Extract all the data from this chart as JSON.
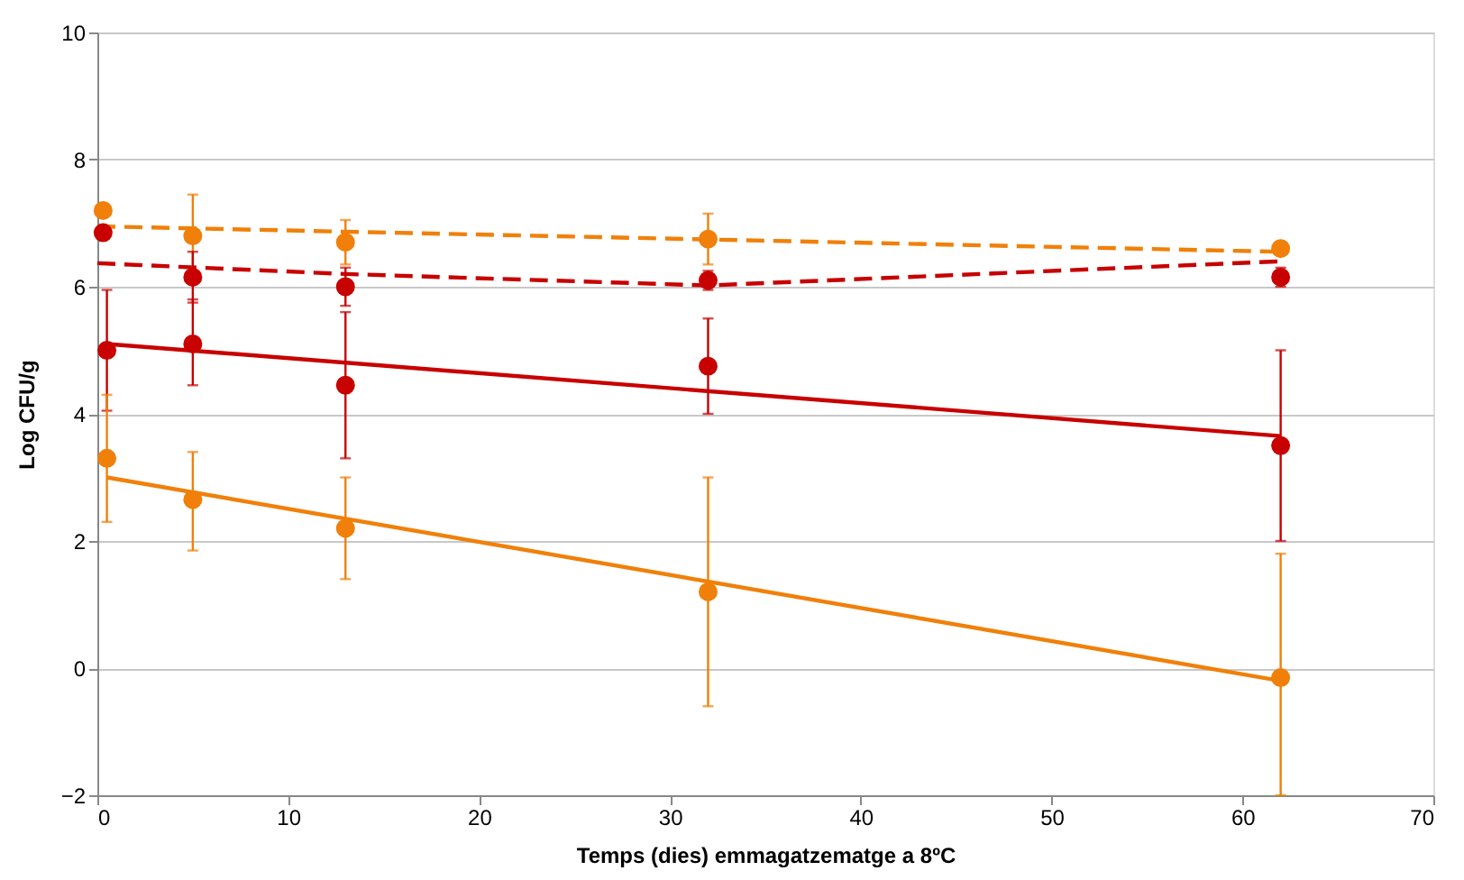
{
  "chart_data": {
    "type": "scatter",
    "xlabel": "Temps (dies) emmagatzematge a 8ºC",
    "ylabel": "Log CFU/g",
    "xlim": [
      0,
      70
    ],
    "xticks": [
      0,
      10,
      20,
      30,
      40,
      50,
      60,
      70
    ],
    "ylim": [
      -2,
      10
    ],
    "yticks": [
      -2,
      0,
      2,
      4,
      6,
      8,
      10
    ],
    "grid": "y",
    "marker": "circle",
    "series": [
      {
        "color": "#f0800a",
        "x": [
          0.3,
          5,
          13,
          32,
          62
        ],
        "values": [
          7.2,
          6.8,
          6.7,
          6.75,
          6.6
        ],
        "errors": [
          null,
          [
            6.2,
            7.45
          ],
          [
            6.35,
            7.05
          ],
          [
            6.35,
            7.15
          ],
          [
            6.5,
            6.7
          ]
        ]
      },
      {
        "color": "#c80000",
        "x": [
          0.3,
          5,
          13,
          32,
          62
        ],
        "values": [
          6.85,
          6.15,
          6.0,
          6.1,
          6.15
        ],
        "errors": [
          null,
          [
            5.75,
            6.55
          ],
          [
            5.7,
            6.3
          ],
          [
            5.95,
            6.25
          ],
          [
            6.0,
            6.3
          ]
        ]
      },
      {
        "color": "#c80000",
        "x": [
          0.5,
          5,
          13,
          32,
          62
        ],
        "values": [
          5.0,
          5.1,
          4.45,
          4.75,
          3.5
        ],
        "errors": [
          [
            4.05,
            5.95
          ],
          [
            4.45,
            5.8
          ],
          [
            3.3,
            5.6
          ],
          [
            4.0,
            5.5
          ],
          [
            2.0,
            5.0
          ]
        ]
      },
      {
        "color": "#f0800a",
        "x": [
          0.5,
          5,
          13,
          32,
          62
        ],
        "values": [
          3.3,
          2.65,
          2.2,
          1.2,
          -0.15
        ],
        "errors": [
          [
            2.3,
            4.3
          ],
          [
            1.85,
            3.4
          ],
          [
            1.4,
            3.0
          ],
          [
            -0.6,
            3.0
          ],
          [
            -2,
            1.8
          ]
        ]
      },
      {
        "type": "line",
        "marker": "none",
        "line_style": "dashed",
        "color": "#f0800a",
        "x": [
          0,
          62
        ],
        "values": [
          6.95,
          6.55
        ]
      },
      {
        "type": "line",
        "marker": "none",
        "line_style": "dashed",
        "color": "#c80000",
        "x": [
          0,
          13,
          32,
          62
        ],
        "values": [
          6.37,
          6.2,
          6.02,
          6.4
        ]
      },
      {
        "type": "line",
        "marker": "none",
        "line_style": "solid",
        "color": "#c80000",
        "x": [
          0.5,
          62
        ],
        "values": [
          5.1,
          3.65
        ]
      },
      {
        "type": "line",
        "marker": "none",
        "line_style": "solid",
        "color": "#f0800a",
        "x": [
          0.5,
          62
        ],
        "values": [
          3.0,
          -0.2
        ]
      }
    ]
  }
}
